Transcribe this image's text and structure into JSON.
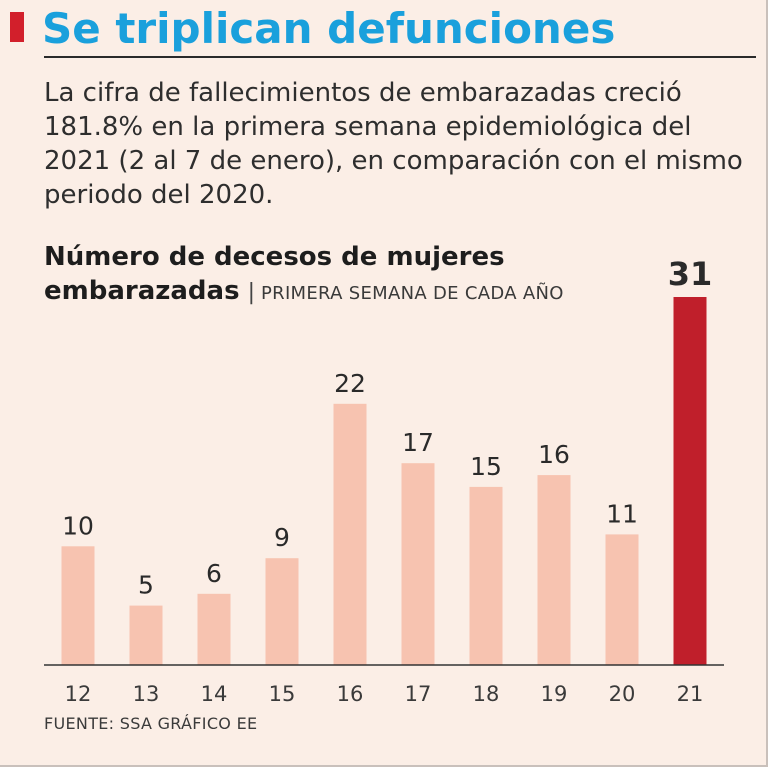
{
  "header": {
    "title": "Se triplican defunciones",
    "lede": "La cifra de fallecimientos de embarazadas creció 181.8% en la primera semana epidemiológica del 2021 (2 al 7 de enero), en comparación con el mismo periodo del 2020."
  },
  "chart_data": {
    "type": "bar",
    "title": "Número de decesos de mujeres embarazadas",
    "subtitle": "PRIMERA SEMANA DE CADA AÑO",
    "categories": [
      "12",
      "13",
      "14",
      "15",
      "16",
      "17",
      "18",
      "19",
      "20",
      "21"
    ],
    "values": [
      10,
      5,
      6,
      9,
      22,
      17,
      15,
      16,
      11,
      31
    ],
    "highlight_index": 9,
    "colors": {
      "bar": "#f7c3b0",
      "highlight": "#c01f2b",
      "axis": "#333333"
    },
    "ylim": [
      0,
      31
    ],
    "xlabel": "",
    "ylabel": ""
  },
  "source": "FUENTE: SSA GRÁFICO EE"
}
